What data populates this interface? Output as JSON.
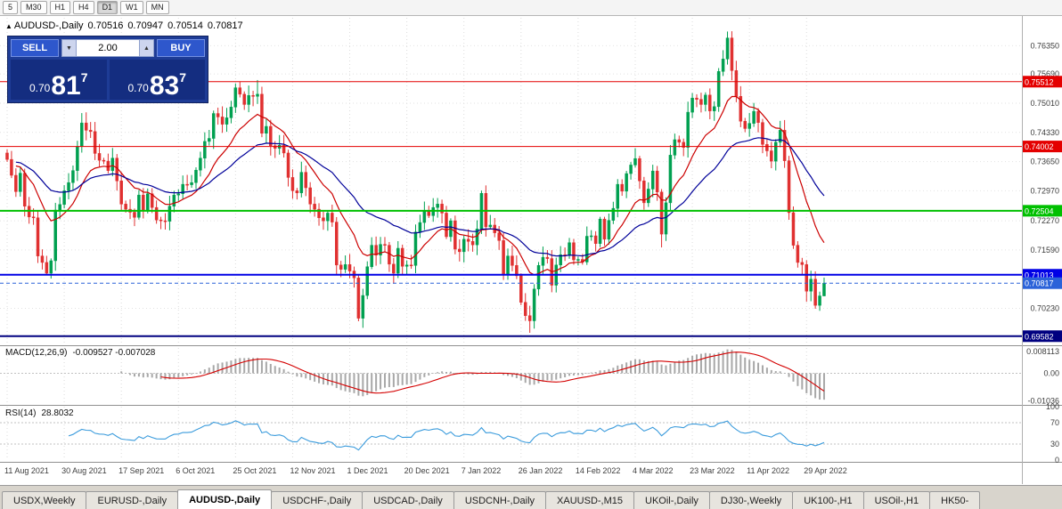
{
  "toolbar": {
    "timeframes": [
      "5",
      "M30",
      "H1",
      "H4",
      "D1",
      "W1",
      "MN"
    ],
    "active": "D1"
  },
  "chart_header": {
    "symbol": "AUDUSD-,Daily",
    "open": "0.70516",
    "high": "0.70947",
    "low": "0.70514",
    "close": "0.70817"
  },
  "trade_panel": {
    "sell_label": "SELL",
    "buy_label": "BUY",
    "volume": "2.00",
    "sell_price": {
      "small": "0.70",
      "big": "81",
      "sup": "7"
    },
    "buy_price": {
      "small": "0.70",
      "big": "83",
      "sup": "7"
    }
  },
  "indicators": {
    "macd": {
      "label": "MACD(12,26,9)",
      "values": "-0.009527 -0.007028",
      "axis": [
        {
          "v": 0.008113,
          "t": "0.008113"
        },
        {
          "v": 0,
          "t": "0.00"
        },
        {
          "v": -0.01036,
          "t": "-0.01036"
        }
      ]
    },
    "rsi": {
      "label": "RSI(14)",
      "value": "28.8032",
      "axis": [
        {
          "v": 100,
          "t": "100"
        },
        {
          "v": 70,
          "t": "70"
        },
        {
          "v": 30,
          "t": "30"
        },
        {
          "v": 0,
          "t": "0"
        }
      ],
      "levels": [
        30,
        70
      ]
    }
  },
  "tabs": {
    "items": [
      "USDX,Weekly",
      "EURUSD-,Daily",
      "AUDUSD-,Daily",
      "USDCHF-,Daily",
      "USDCAD-,Daily",
      "USDCNH-,Daily",
      "XAUUSD-,M15",
      "UKOil-,Daily",
      "DJ30-,Weekly",
      "UK100-,H1",
      "USOil-,H1",
      "HK50-"
    ],
    "active_index": 2
  },
  "chart_data": {
    "type": "candlestick",
    "title": "AUDUSD-,Daily",
    "symbol": "AUDUSD",
    "timeframe": "Daily",
    "y_range": [
      0.6937,
      0.77
    ],
    "candle_up_color": "#00a050",
    "candle_down_color": "#e03030",
    "ma_fast_color": "#cc0000",
    "ma_slow_color": "#000099",
    "macd_hist_color": "#a8a8a8",
    "macd_signal_color": "#d40000",
    "rsi_line_color": "#3a9bdc",
    "price_axis_labels": [
      "0.76350",
      "0.75690",
      "0.75010",
      "0.74330",
      "0.73650",
      "0.72970",
      "0.72270",
      "0.71590",
      "0.70230"
    ],
    "levels": [
      {
        "price": 0.75512,
        "label": "0.75512",
        "color": "#e40000",
        "lw": 1,
        "current": false
      },
      {
        "price": 0.74002,
        "label": "0.74002",
        "color": "#e40000",
        "lw": 1,
        "current": false
      },
      {
        "price": 0.72504,
        "label": "0.72504",
        "color": "#00c000",
        "lw": 2,
        "current": false
      },
      {
        "price": 0.71013,
        "label": "0.71013",
        "color": "#0000e6",
        "lw": 2,
        "current": false
      },
      {
        "price": 0.70817,
        "label": "0.70817",
        "color": "#2b62d9",
        "lw": 1,
        "current": true
      },
      {
        "price": 0.69582,
        "label": "0.69582",
        "color": "#000080",
        "lw": 2,
        "current": false
      }
    ],
    "x_axis_labels": [
      {
        "i": 0,
        "t": "11 Aug 2021"
      },
      {
        "i": 13,
        "t": "30 Aug 2021"
      },
      {
        "i": 26,
        "t": "17 Sep 2021"
      },
      {
        "i": 39,
        "t": "6 Oct 2021"
      },
      {
        "i": 52,
        "t": "25 Oct 2021"
      },
      {
        "i": 65,
        "t": "12 Nov 2021"
      },
      {
        "i": 78,
        "t": "1 Dec 2021"
      },
      {
        "i": 91,
        "t": "20 Dec 2021"
      },
      {
        "i": 104,
        "t": "7 Jan 2022"
      },
      {
        "i": 117,
        "t": "26 Jan 2022"
      },
      {
        "i": 130,
        "t": "14 Feb 2022"
      },
      {
        "i": 143,
        "t": "4 Mar 2022"
      },
      {
        "i": 156,
        "t": "23 Mar 2022"
      },
      {
        "i": 169,
        "t": "11 Apr 2022"
      },
      {
        "i": 182,
        "t": "29 Apr 2022"
      }
    ],
    "moving_averages": [
      {
        "type": "ema",
        "period": 13
      },
      {
        "type": "ema",
        "period": 34
      }
    ],
    "macd_params": [
      12,
      26,
      9
    ],
    "rsi_period": 14,
    "candles": {
      "closes": [
        0.737,
        0.7333,
        0.7295,
        0.7338,
        0.7261,
        0.7236,
        0.7234,
        0.7145,
        0.713,
        0.7105,
        0.7134,
        0.7252,
        0.7265,
        0.7297,
        0.7316,
        0.7344,
        0.74,
        0.7455,
        0.7438,
        0.7435,
        0.7384,
        0.7368,
        0.7366,
        0.7344,
        0.7373,
        0.732,
        0.7266,
        0.7254,
        0.7247,
        0.7235,
        0.7287,
        0.725,
        0.729,
        0.7258,
        0.7229,
        0.7227,
        0.7226,
        0.7261,
        0.7287,
        0.729,
        0.7312,
        0.7311,
        0.7316,
        0.7345,
        0.7373,
        0.7412,
        0.7419,
        0.7477,
        0.7469,
        0.7452,
        0.7467,
        0.7492,
        0.7537,
        0.7522,
        0.7498,
        0.7519,
        0.7517,
        0.7522,
        0.7431,
        0.7447,
        0.7402,
        0.7396,
        0.7403,
        0.7385,
        0.7328,
        0.7297,
        0.7292,
        0.734,
        0.7304,
        0.7266,
        0.7254,
        0.7234,
        0.7227,
        0.7245,
        0.7224,
        0.7124,
        0.7114,
        0.7125,
        0.711,
        0.7094,
        0.7,
        0.7053,
        0.712,
        0.717,
        0.7147,
        0.7172,
        0.717,
        0.7126,
        0.7105,
        0.7163,
        0.7121,
        0.7124,
        0.7123,
        0.7201,
        0.7223,
        0.725,
        0.7239,
        0.7258,
        0.7266,
        0.7245,
        0.719,
        0.7227,
        0.7161,
        0.7155,
        0.7184,
        0.7179,
        0.7171,
        0.7208,
        0.7291,
        0.7213,
        0.7217,
        0.7199,
        0.7181,
        0.7101,
        0.7145,
        0.7123,
        0.7099,
        0.7037,
        0.7006,
        0.6994,
        0.7068,
        0.7123,
        0.7142,
        0.7139,
        0.7077,
        0.7124,
        0.7148,
        0.7146,
        0.7176,
        0.7136,
        0.7137,
        0.7131,
        0.7191,
        0.7192,
        0.7174,
        0.7231,
        0.7184,
        0.7228,
        0.7256,
        0.7312,
        0.7296,
        0.7337,
        0.7357,
        0.7372,
        0.732,
        0.7269,
        0.7301,
        0.7343,
        0.7294,
        0.7196,
        0.7269,
        0.738,
        0.7416,
        0.741,
        0.7398,
        0.748,
        0.7513,
        0.751,
        0.7498,
        0.752,
        0.7483,
        0.7493,
        0.7575,
        0.7604,
        0.7653,
        0.7577,
        0.7517,
        0.7459,
        0.7442,
        0.7454,
        0.7482,
        0.7456,
        0.7405,
        0.739,
        0.7366,
        0.741,
        0.7438,
        0.7367,
        0.7246,
        0.717,
        0.713,
        0.7125,
        0.7063,
        0.7091,
        0.703,
        0.7052,
        0.70817
      ],
      "wick_overrides": {
        "9": {
          "l": 0.7102
        },
        "17": {
          "h": 0.7478
        },
        "52": {
          "h": 0.7547
        },
        "57": {
          "h": 0.7555
        },
        "80": {
          "l": 0.6993
        },
        "119": {
          "l": 0.6966
        },
        "149": {
          "l": 0.7165
        },
        "164": {
          "h": 0.7668
        },
        "184": {
          "l": 0.7022
        },
        "186": {
          "h": 0.70947,
          "l": 0.70514
        }
      }
    }
  }
}
